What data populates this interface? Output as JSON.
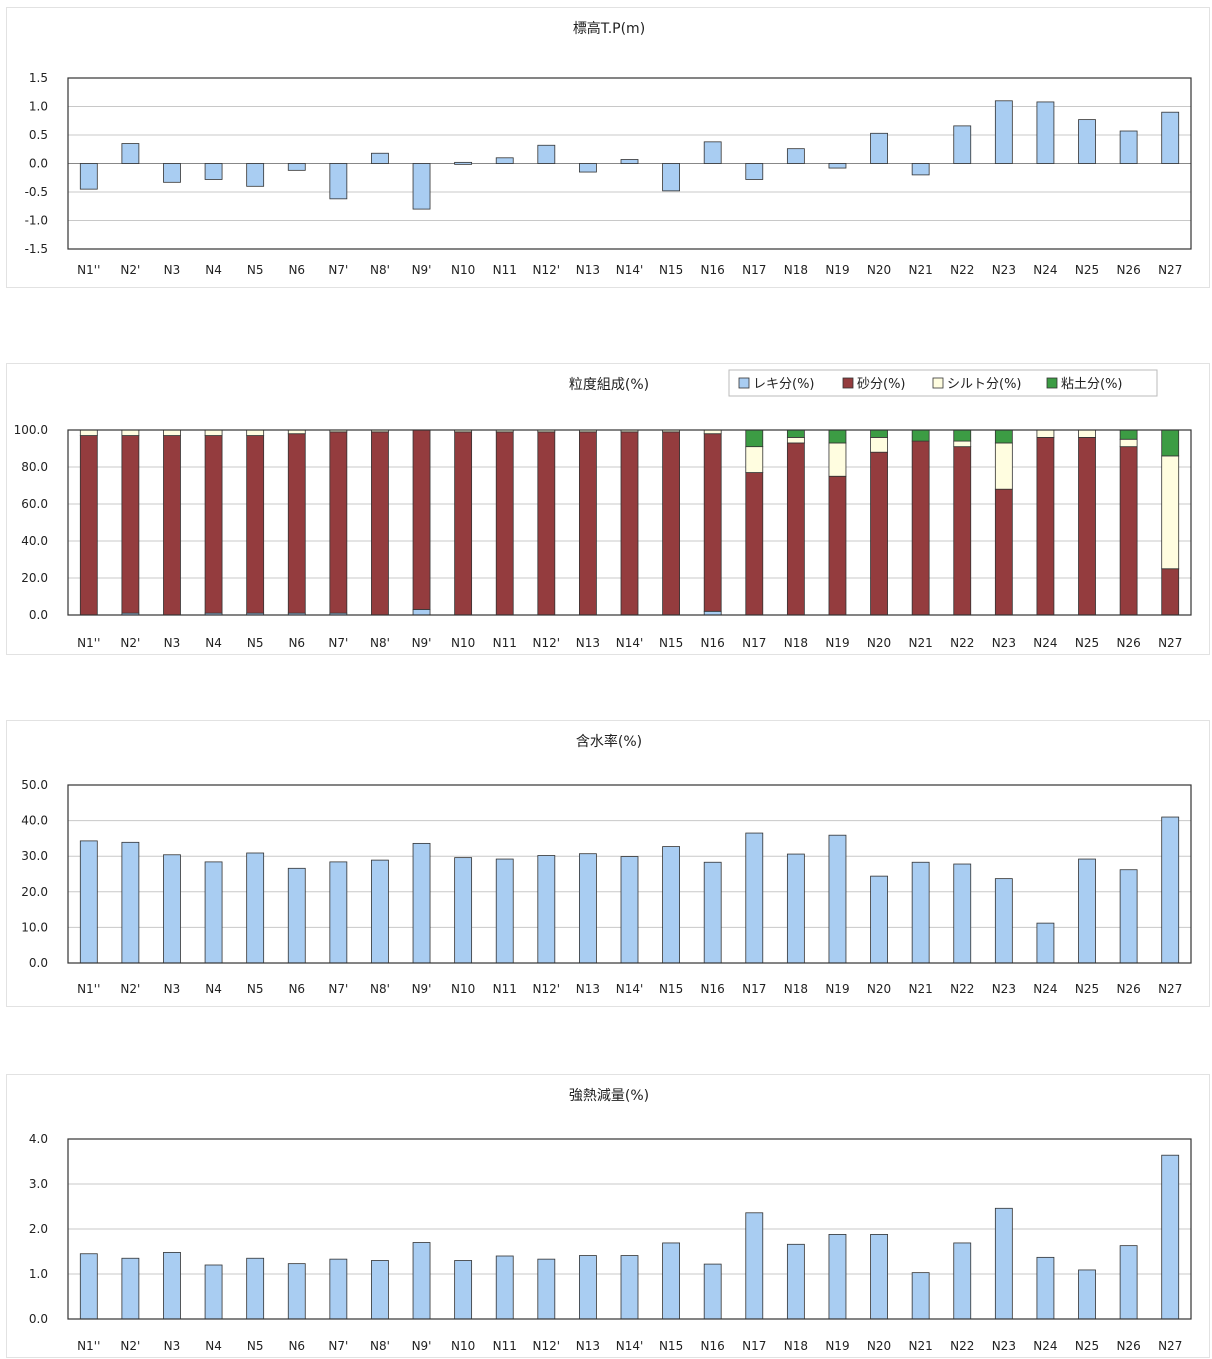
{
  "categories": [
    "N1''",
    "N2'",
    "N3",
    "N4",
    "N5",
    "N6",
    "N7'",
    "N8'",
    "N9'",
    "N10",
    "N11",
    "N12'",
    "N13",
    "N14'",
    "N15",
    "N16",
    "N17",
    "N18",
    "N19",
    "N20",
    "N21",
    "N22",
    "N23",
    "N24",
    "N25",
    "N26",
    "N27"
  ],
  "colors": {
    "blue": "#a9cdf2",
    "red": "#943c3e",
    "cream": "#fffde0",
    "green": "#3c9c44"
  },
  "chart_data": [
    {
      "type": "bar",
      "title": "標高T.P(m)",
      "ylim": [
        -1.5,
        1.5
      ],
      "yticks": [
        "1.5",
        "1.0",
        "0.5",
        "0.0",
        "-0.5",
        "-1.0",
        "-1.5"
      ],
      "grid": true,
      "series": [
        {
          "values": [
            -0.45,
            0.35,
            -0.33,
            -0.28,
            -0.4,
            -0.12,
            -0.62,
            0.18,
            -0.8,
            0.02,
            0.1,
            0.32,
            -0.15,
            0.07,
            -0.48,
            0.38,
            -0.28,
            0.26,
            -0.08,
            0.53,
            -0.2,
            0.66,
            1.1,
            1.08,
            0.77,
            0.57,
            0.9
          ]
        }
      ]
    },
    {
      "type": "bar",
      "stacked": true,
      "title": "粒度組成(%)",
      "ylim": [
        0,
        100
      ],
      "yticks": [
        "100.0",
        "80.0",
        "60.0",
        "40.0",
        "20.0",
        "0.0"
      ],
      "grid": true,
      "legend": "top-right",
      "series": [
        {
          "name": "レキ分(%)",
          "values": [
            0,
            1,
            0,
            1,
            1,
            1,
            1,
            0,
            3,
            0,
            0,
            0,
            0,
            0,
            0,
            2,
            0,
            0,
            0,
            0,
            0,
            0,
            0,
            0,
            0,
            0,
            0
          ]
        },
        {
          "name": "砂分(%)",
          "values": [
            97,
            96,
            97,
            96,
            96,
            97,
            98,
            99,
            97,
            99,
            99,
            99,
            99,
            99,
            99,
            96,
            77,
            93,
            75,
            88,
            94,
            91,
            68,
            96,
            96,
            91,
            25
          ]
        },
        {
          "name": "シルト分(%)",
          "values": [
            3,
            3,
            3,
            3,
            3,
            2,
            1,
            1,
            0,
            1,
            1,
            1,
            1,
            1,
            1,
            2,
            14,
            3,
            18,
            8,
            0,
            3,
            25,
            4,
            4,
            4,
            61
          ]
        },
        {
          "name": "粘土分(%)",
          "values": [
            0,
            0,
            0,
            0,
            0,
            0,
            0,
            0,
            0,
            0,
            0,
            0,
            0,
            0,
            0,
            0,
            9,
            4,
            7,
            4,
            6,
            6,
            7,
            0,
            0,
            5,
            14
          ]
        }
      ]
    },
    {
      "type": "bar",
      "title": "含水率(%)",
      "ylim": [
        0,
        50
      ],
      "yticks": [
        "50.0",
        "40.0",
        "30.0",
        "20.0",
        "10.0",
        "0.0"
      ],
      "grid": true,
      "series": [
        {
          "values": [
            34.3,
            33.9,
            30.4,
            28.4,
            30.9,
            26.6,
            28.4,
            28.9,
            33.6,
            29.6,
            29.2,
            30.2,
            30.7,
            29.9,
            32.7,
            28.3,
            36.5,
            30.6,
            35.9,
            24.4,
            28.3,
            27.8,
            23.7,
            11.2,
            29.2,
            26.2,
            41.0
          ]
        }
      ]
    },
    {
      "type": "bar",
      "title": "強熱減量(%)",
      "ylim": [
        0,
        4
      ],
      "yticks": [
        "4.0",
        "3.0",
        "2.0",
        "1.0",
        "0.0"
      ],
      "grid": true,
      "series": [
        {
          "values": [
            1.45,
            1.35,
            1.48,
            1.2,
            1.35,
            1.23,
            1.33,
            1.3,
            1.7,
            1.3,
            1.4,
            1.33,
            1.41,
            1.41,
            1.69,
            1.22,
            2.36,
            1.66,
            1.88,
            1.88,
            1.03,
            1.69,
            2.46,
            1.37,
            1.09,
            1.63,
            3.64
          ]
        }
      ]
    }
  ]
}
